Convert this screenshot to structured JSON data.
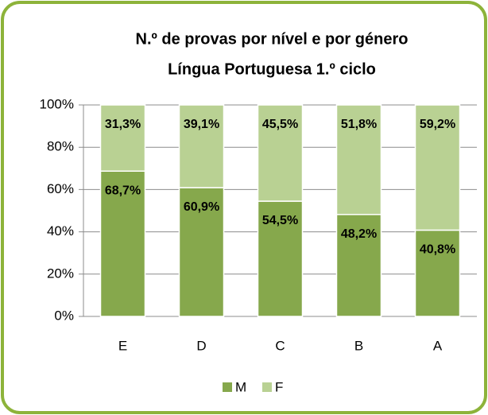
{
  "chart_data": {
    "type": "stacked_bar",
    "title": [
      "N.º de provas por nível e por género",
      "Língua Portuguesa 1.º ciclo"
    ],
    "categories": [
      "E",
      "D",
      "C",
      "B",
      "A"
    ],
    "series": [
      {
        "name": "M",
        "color": "#86a84c",
        "values": [
          68.7,
          60.9,
          54.5,
          48.2,
          40.8
        ],
        "value_labels": [
          "68,7%",
          "60,9%",
          "54,5%",
          "48,2%",
          "40,8%"
        ]
      },
      {
        "name": "F",
        "color": "#b9d193",
        "values": [
          31.3,
          39.1,
          45.5,
          51.8,
          59.2
        ],
        "value_labels": [
          "31,3%",
          "39,1%",
          "45,5%",
          "51,8%",
          "59,2%"
        ]
      }
    ],
    "ylim": [
      0,
      100
    ],
    "yticks": [
      {
        "value": 0,
        "label": "0%"
      },
      {
        "value": 20,
        "label": "20%"
      },
      {
        "value": 40,
        "label": "40%"
      },
      {
        "value": 60,
        "label": "60%"
      },
      {
        "value": 80,
        "label": "80%"
      },
      {
        "value": 100,
        "label": "100%"
      }
    ],
    "grid": true,
    "legend": "bottom"
  }
}
